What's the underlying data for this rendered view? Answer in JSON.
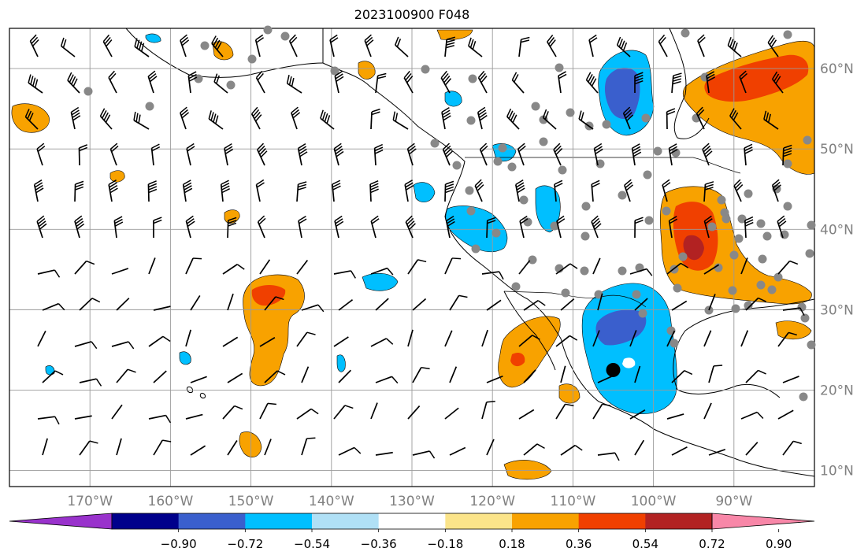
{
  "title": "2023100900 F048",
  "map": {
    "lon_range": [
      -180,
      -80
    ],
    "lat_range": [
      8,
      65
    ],
    "graticule": {
      "lon_step": 10,
      "lat_step": 10
    },
    "lon_labels": [
      "170°W",
      "160°W",
      "150°W",
      "140°W",
      "130°W",
      "120°W",
      "110°W",
      "100°W",
      "90°W"
    ],
    "lat_labels": [
      "60°N",
      "50°N",
      "40°N",
      "30°N",
      "20°N",
      "10°N"
    ],
    "label_color": "#808080",
    "marker": {
      "lon": -105,
      "lat": 22.5,
      "label": "black-dot"
    }
  },
  "colorbar": {
    "ticks": [
      "−0.90",
      "−0.72",
      "−0.54",
      "−0.36",
      "−0.18",
      "0.18",
      "0.36",
      "0.54",
      "0.72",
      "0.90"
    ],
    "colors": [
      "#9932cc",
      "#00008b",
      "#3a5fcd",
      "#00bfff",
      "#b0e0f6",
      "#ffffff",
      "#fbe48a",
      "#f8a200",
      "#f04000",
      "#b22222",
      "#f887a8"
    ]
  },
  "legend_icons": {
    "station": "station-dot-icon",
    "wind": "wind-barb-icon"
  }
}
